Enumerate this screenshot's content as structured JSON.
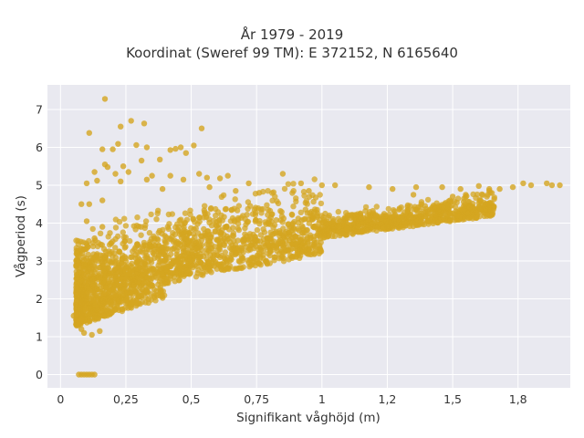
{
  "chart_data": {
    "type": "scatter",
    "title": "År 1979 - 2019",
    "subtitle": "Koordinat (Sweref 99 TM): E 372152, N 6165640",
    "xlabel": "Signifikant våghöjd (m)",
    "ylabel": "Vågperiod (s)",
    "xlim": [
      -0.05,
      1.95
    ],
    "ylim": [
      -0.35,
      7.65
    ],
    "x_ticks": [
      0,
      0.25,
      0.5,
      0.75,
      1,
      1.25,
      1.5,
      1.75
    ],
    "x_tick_labels": [
      "0",
      "0,25",
      "0,5",
      "0,75",
      "1",
      "1,2",
      "1,5",
      "1,8"
    ],
    "y_ticks": [
      0,
      1,
      2,
      3,
      4,
      5,
      6,
      7
    ],
    "y_tick_labels": [
      "0",
      "1",
      "2",
      "3",
      "4",
      "5",
      "6",
      "7"
    ],
    "grid": true,
    "marker_color": "#d4a520",
    "plot_background": "#e9e9f0",
    "points": [
      [
        0.17,
        7.28
      ],
      [
        0.11,
        6.38
      ],
      [
        0.27,
        6.7
      ],
      [
        0.32,
        6.63
      ],
      [
        0.23,
        6.55
      ],
      [
        0.54,
        6.5
      ],
      [
        0.22,
        6.09
      ],
      [
        0.29,
        6.06
      ],
      [
        0.33,
        6.0
      ],
      [
        0.46,
        6.0
      ],
      [
        0.51,
        6.05
      ],
      [
        0.44,
        5.96
      ],
      [
        0.42,
        5.93
      ],
      [
        0.16,
        5.95
      ],
      [
        0.2,
        5.95
      ],
      [
        0.48,
        5.85
      ],
      [
        0.38,
        5.68
      ],
      [
        0.31,
        5.65
      ],
      [
        0.17,
        5.55
      ],
      [
        0.18,
        5.48
      ],
      [
        0.13,
        5.35
      ],
      [
        0.21,
        5.3
      ],
      [
        0.26,
        5.35
      ],
      [
        0.24,
        5.5
      ],
      [
        0.35,
        5.25
      ],
      [
        0.42,
        5.25
      ],
      [
        0.53,
        5.3
      ],
      [
        0.64,
        5.25
      ],
      [
        0.56,
        5.2
      ],
      [
        0.14,
        5.12
      ],
      [
        0.1,
        5.05
      ],
      [
        0.85,
        5.3
      ],
      [
        0.33,
        5.15
      ],
      [
        0.47,
        5.15
      ],
      [
        0.61,
        5.18
      ],
      [
        0.23,
        5.1
      ],
      [
        0.08,
        4.5
      ],
      [
        0.11,
        4.5
      ],
      [
        0.1,
        4.05
      ],
      [
        0.16,
        4.6
      ],
      [
        0.72,
        5.05
      ],
      [
        0.92,
        5.05
      ],
      [
        1.0,
        5.0
      ],
      [
        1.05,
        5.0
      ],
      [
        1.18,
        4.95
      ],
      [
        1.27,
        4.9
      ],
      [
        1.36,
        4.95
      ],
      [
        1.46,
        4.95
      ],
      [
        1.53,
        4.9
      ],
      [
        1.6,
        4.98
      ],
      [
        1.64,
        4.9
      ],
      [
        1.68,
        4.9
      ],
      [
        1.73,
        4.95
      ],
      [
        1.77,
        5.05
      ],
      [
        1.8,
        5.0
      ],
      [
        1.86,
        5.05
      ],
      [
        1.88,
        5.0
      ],
      [
        1.91,
        5.0
      ],
      [
        1.55,
        4.75
      ],
      [
        1.49,
        4.6
      ],
      [
        1.38,
        4.5
      ],
      [
        1.5,
        4.7
      ],
      [
        1.64,
        4.85
      ],
      [
        1.35,
        4.75
      ],
      [
        0.39,
        4.9
      ],
      [
        0.57,
        4.95
      ],
      [
        0.67,
        4.85
      ],
      [
        0.76,
        4.8
      ],
      [
        0.95,
        4.85
      ],
      [
        0.05,
        1.55
      ],
      [
        0.06,
        1.45
      ],
      [
        0.06,
        1.6
      ],
      [
        0.07,
        1.35
      ],
      [
        0.08,
        1.45
      ],
      [
        0.08,
        1.2
      ],
      [
        0.09,
        1.1
      ],
      [
        0.12,
        1.05
      ],
      [
        0.15,
        1.15
      ],
      [
        0.07,
        0.0
      ],
      [
        0.08,
        0.0
      ],
      [
        0.09,
        0.0
      ],
      [
        0.1,
        0.0
      ],
      [
        0.11,
        0.0
      ],
      [
        0.12,
        0.0
      ],
      [
        0.13,
        0.0
      ],
      [
        0.06,
        2.3
      ],
      [
        0.07,
        2.9
      ],
      [
        0.09,
        3.3
      ],
      [
        0.13,
        3.6
      ],
      [
        0.16,
        3.9
      ]
    ]
  }
}
